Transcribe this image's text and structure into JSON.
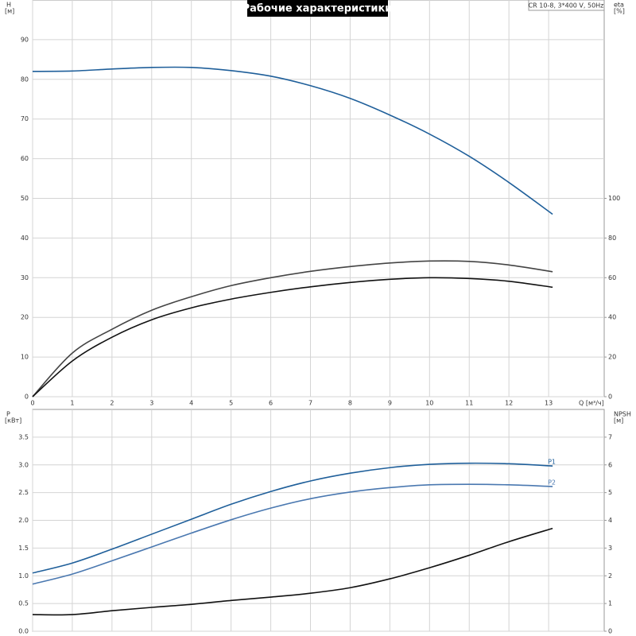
{
  "chart_data": [
    {
      "type": "line",
      "title": "Рабочие характеристики",
      "annotation": "CR 10-8, 3*400 V, 50Hz",
      "ylabel": "H",
      "yunit": "[м]",
      "y2label": "eta",
      "y2unit": "[%]",
      "xlabel": "Q [м³/ч]",
      "xlim": [
        0,
        14.4
      ],
      "xticks": [
        0,
        1,
        2,
        3,
        4,
        5,
        6,
        7,
        8,
        9,
        10,
        11,
        12,
        13
      ],
      "ylim": [
        0,
        100
      ],
      "yticks": [
        0,
        10,
        20,
        30,
        40,
        50,
        60,
        70,
        80,
        90
      ],
      "y2lim": [
        0,
        200
      ],
      "y2ticks": [
        0,
        20,
        40,
        60,
        80,
        100
      ],
      "grid": true,
      "x": [
        0,
        1,
        2,
        3,
        4,
        5,
        6,
        7,
        8,
        9,
        10,
        11,
        12,
        13.1
      ],
      "series": [
        {
          "color": "#1f5f9a",
          "values": [
            82,
            82.1,
            82.6,
            83,
            83,
            82.2,
            80.8,
            78.4,
            75.2,
            71,
            66.2,
            60.6,
            54,
            46
          ]
        },
        {
          "color": "#444444",
          "axis": "y2",
          "values": [
            0,
            22,
            34,
            43.6,
            50.4,
            56,
            60,
            63.2,
            65.6,
            67.4,
            68.4,
            68.2,
            66.4,
            63
          ]
        },
        {
          "color": "#111111",
          "axis": "y2",
          "values": [
            0,
            18,
            30,
            38.8,
            44.8,
            49.2,
            52.6,
            55.4,
            57.6,
            59.2,
            60,
            59.6,
            58.2,
            55.2
          ]
        }
      ]
    },
    {
      "type": "line",
      "ylabel": "P",
      "yunit": "[кВт]",
      "y2label": "NPSH",
      "y2unit": "[м]",
      "xlim": [
        0,
        14.4
      ],
      "xticks": [
        0,
        1,
        2,
        3,
        4,
        5,
        6,
        7,
        8,
        9,
        10,
        11,
        12,
        13
      ],
      "ylim": [
        0,
        4
      ],
      "yticks": [
        {
          "value": 0,
          "label": "0.0"
        },
        0.5,
        {
          "value": 1,
          "label": "1.0"
        },
        1.5,
        {
          "value": 2,
          "label": "2.0"
        },
        2.5,
        {
          "value": 3,
          "label": "3.0"
        },
        3.5
      ],
      "y2lim": [
        0,
        8
      ],
      "y2ticks": [
        0,
        1,
        2,
        3,
        4,
        5,
        6,
        7
      ],
      "grid": true,
      "x": [
        0,
        1,
        2,
        3,
        4,
        5,
        6,
        7,
        8,
        9,
        10,
        11,
        12,
        13.1
      ],
      "series": [
        {
          "name": "P1",
          "color": "#1f5f9a",
          "values": [
            1.05,
            1.23,
            1.48,
            1.75,
            2.02,
            2.29,
            2.52,
            2.71,
            2.85,
            2.95,
            3.01,
            3.03,
            3.02,
            2.98
          ]
        },
        {
          "name": "P2",
          "color": "#4a78b0",
          "values": [
            0.85,
            1.03,
            1.27,
            1.52,
            1.77,
            2.01,
            2.22,
            2.39,
            2.51,
            2.59,
            2.64,
            2.65,
            2.64,
            2.61
          ]
        },
        {
          "color": "#111111",
          "axis": "y2",
          "values": [
            0.6,
            0.6,
            0.74,
            0.86,
            0.97,
            1.11,
            1.23,
            1.37,
            1.57,
            1.89,
            2.29,
            2.74,
            3.23,
            3.71
          ]
        }
      ]
    }
  ]
}
